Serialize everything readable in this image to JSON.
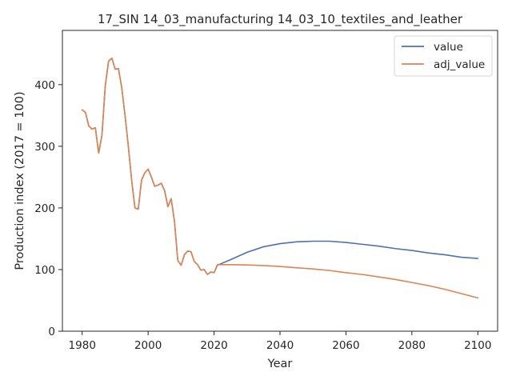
{
  "chart_data": {
    "type": "line",
    "title": "17_SIN 14_03_manufacturing 14_03_10_textiles_and_leather",
    "xlabel": "Year",
    "ylabel": "Production index (2017 = 100)",
    "xlim": [
      1974,
      2106
    ],
    "ylim": [
      0,
      488
    ],
    "xticks": [
      1980,
      2000,
      2020,
      2040,
      2060,
      2080,
      2100
    ],
    "yticks": [
      0,
      100,
      200,
      300,
      400
    ],
    "grid": false,
    "legend_position": "top-right",
    "series": [
      {
        "name": "value",
        "color": "#4c72b0",
        "points": [
          [
            1980,
            359
          ],
          [
            1981,
            355
          ],
          [
            1982,
            333
          ],
          [
            1983,
            328
          ],
          [
            1984,
            330
          ],
          [
            1985,
            289
          ],
          [
            1986,
            318
          ],
          [
            1987,
            398
          ],
          [
            1988,
            438
          ],
          [
            1989,
            443
          ],
          [
            1990,
            425
          ],
          [
            1991,
            426
          ],
          [
            1992,
            395
          ],
          [
            1993,
            350
          ],
          [
            1994,
            300
          ],
          [
            1995,
            245
          ],
          [
            1996,
            200
          ],
          [
            1997,
            198
          ],
          [
            1998,
            245
          ],
          [
            1999,
            257
          ],
          [
            2000,
            263
          ],
          [
            2001,
            250
          ],
          [
            2002,
            235
          ],
          [
            2003,
            237
          ],
          [
            2004,
            240
          ],
          [
            2005,
            228
          ],
          [
            2006,
            202
          ],
          [
            2007,
            215
          ],
          [
            2008,
            178
          ],
          [
            2009,
            115
          ],
          [
            2010,
            107
          ],
          [
            2011,
            124
          ],
          [
            2012,
            130
          ],
          [
            2013,
            129
          ],
          [
            2014,
            113
          ],
          [
            2015,
            108
          ],
          [
            2016,
            99
          ],
          [
            2017,
            100
          ],
          [
            2018,
            92
          ],
          [
            2019,
            96
          ],
          [
            2020,
            95
          ],
          [
            2021,
            107
          ],
          [
            2025,
            116
          ],
          [
            2030,
            128
          ],
          [
            2035,
            137
          ],
          [
            2040,
            142
          ],
          [
            2045,
            145
          ],
          [
            2050,
            146
          ],
          [
            2055,
            146
          ],
          [
            2060,
            144
          ],
          [
            2065,
            141
          ],
          [
            2070,
            138
          ],
          [
            2075,
            134
          ],
          [
            2080,
            131
          ],
          [
            2085,
            127
          ],
          [
            2090,
            124
          ],
          [
            2095,
            120
          ],
          [
            2100,
            118
          ]
        ]
      },
      {
        "name": "adj_value",
        "color": "#dd8452",
        "points": [
          [
            1980,
            359
          ],
          [
            1981,
            355
          ],
          [
            1982,
            333
          ],
          [
            1983,
            328
          ],
          [
            1984,
            330
          ],
          [
            1985,
            289
          ],
          [
            1986,
            318
          ],
          [
            1987,
            398
          ],
          [
            1988,
            438
          ],
          [
            1989,
            443
          ],
          [
            1990,
            425
          ],
          [
            1991,
            426
          ],
          [
            1992,
            395
          ],
          [
            1993,
            350
          ],
          [
            1994,
            300
          ],
          [
            1995,
            245
          ],
          [
            1996,
            200
          ],
          [
            1997,
            198
          ],
          [
            1998,
            245
          ],
          [
            1999,
            257
          ],
          [
            2000,
            263
          ],
          [
            2001,
            250
          ],
          [
            2002,
            235
          ],
          [
            2003,
            237
          ],
          [
            2004,
            240
          ],
          [
            2005,
            228
          ],
          [
            2006,
            202
          ],
          [
            2007,
            215
          ],
          [
            2008,
            178
          ],
          [
            2009,
            115
          ],
          [
            2010,
            107
          ],
          [
            2011,
            124
          ],
          [
            2012,
            130
          ],
          [
            2013,
            129
          ],
          [
            2014,
            113
          ],
          [
            2015,
            108
          ],
          [
            2016,
            99
          ],
          [
            2017,
            100
          ],
          [
            2018,
            92
          ],
          [
            2019,
            96
          ],
          [
            2020,
            95
          ],
          [
            2021,
            108
          ],
          [
            2025,
            108
          ],
          [
            2030,
            107.5
          ],
          [
            2035,
            106.5
          ],
          [
            2040,
            105
          ],
          [
            2045,
            103
          ],
          [
            2050,
            101
          ],
          [
            2055,
            98.5
          ],
          [
            2060,
            95
          ],
          [
            2065,
            92
          ],
          [
            2070,
            88
          ],
          [
            2075,
            84
          ],
          [
            2080,
            79
          ],
          [
            2085,
            74
          ],
          [
            2090,
            68
          ],
          [
            2095,
            61
          ],
          [
            2100,
            54
          ]
        ]
      }
    ]
  }
}
